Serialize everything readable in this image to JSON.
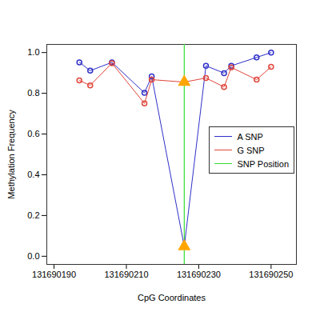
{
  "chart_data": {
    "type": "line",
    "x_label": "CpG Coordinates",
    "y_label": "Methylation Frequency",
    "x": [
      131690197,
      131690200,
      131690206,
      131690215,
      131690217,
      131690226,
      131690232,
      131690237,
      131690239,
      131690246,
      131690250
    ],
    "series": [
      {
        "name": "A SNP",
        "color": "#3030c8",
        "marker": "circle",
        "values": [
          0.952,
          0.911,
          0.952,
          0.802,
          0.883,
          0.048,
          0.935,
          0.899,
          0.935,
          0.976,
          1.0
        ]
      },
      {
        "name": "G SNP",
        "color": "#e0453a",
        "marker": "circle",
        "values": [
          0.863,
          0.839,
          0.948,
          0.75,
          0.867,
          0.855,
          0.875,
          0.831,
          0.927,
          0.867,
          0.93
        ]
      }
    ],
    "snp_line": {
      "label": "SNP Position",
      "x": 131690226,
      "color": "#33dd33"
    },
    "xlim": [
      131690188,
      131690257
    ],
    "xticks": [
      131690190,
      131690210,
      131690230,
      131690250
    ],
    "ylim": [
      -0.04,
      1.04
    ],
    "yticks": [
      {
        "value": 0,
        "label": "0.0"
      },
      {
        "value": 0.2,
        "label": "0.2"
      },
      {
        "value": 0.4,
        "label": "0.4"
      },
      {
        "value": 0.6,
        "label": "0.6"
      },
      {
        "value": 0.8,
        "label": "0.8"
      },
      {
        "value": 1,
        "label": "1.0"
      }
    ],
    "legend": "right",
    "grid": false
  }
}
